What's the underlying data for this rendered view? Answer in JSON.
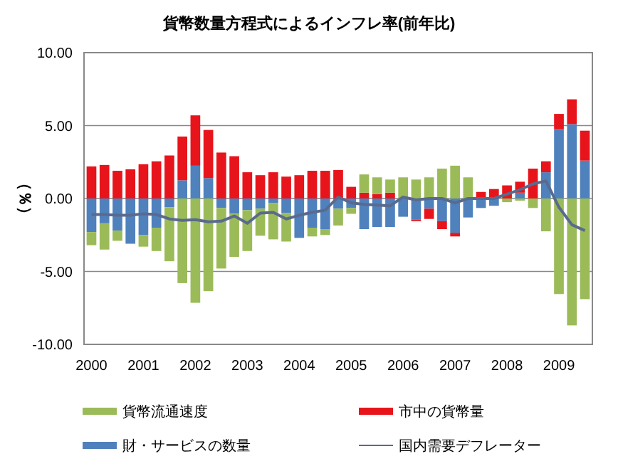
{
  "chart_data": {
    "type": "bar",
    "stacked": true,
    "title": "貨幣数量方程式によるインフレ率(前年比)",
    "ylabel": "（％）",
    "categories": [
      "2000",
      null,
      null,
      null,
      "2001",
      null,
      null,
      null,
      "2002",
      null,
      null,
      null,
      "2003",
      null,
      null,
      null,
      "2004",
      null,
      null,
      null,
      "2005",
      null,
      null,
      null,
      "2006",
      null,
      null,
      null,
      "2007",
      null,
      null,
      null,
      "2008",
      null,
      null,
      null,
      "2009",
      null,
      null
    ],
    "ylim": [
      -10,
      10
    ],
    "yticks": [
      {
        "value": -10,
        "label": "-10.00"
      },
      {
        "value": -5,
        "label": "-5.00"
      },
      {
        "value": 0,
        "label": "0.00"
      },
      {
        "value": 5,
        "label": "5.00"
      },
      {
        "value": 10,
        "label": "10.00"
      }
    ],
    "grid": "y",
    "legend": "bottom",
    "series": [
      {
        "name": "財・サービスの数量",
        "color": "#4f81bd",
        "values": [
          -2.3,
          -1.7,
          -2.2,
          -3.1,
          -2.5,
          -2.0,
          -0.6,
          1.25,
          2.25,
          1.4,
          -0.65,
          -1.05,
          -0.8,
          -0.7,
          -0.3,
          -1.0,
          -2.7,
          -2.0,
          -2.1,
          -0.7,
          -0.65,
          -2.1,
          -1.95,
          -1.95,
          -1.25,
          -1.45,
          -0.7,
          -1.55,
          -2.35,
          -1.3,
          -0.65,
          -0.5,
          0,
          0.4,
          0,
          1.8,
          4.75,
          5.1,
          2.6
        ]
      },
      {
        "name": "市中の貨幣量",
        "color": "#e8141b",
        "values": [
          2.2,
          2.3,
          1.9,
          2.0,
          2.35,
          2.55,
          2.95,
          3.0,
          3.45,
          3.3,
          3.15,
          2.9,
          1.8,
          1.6,
          1.8,
          1.5,
          1.6,
          1.9,
          1.9,
          1.95,
          0.8,
          0.4,
          0.3,
          0.4,
          0,
          -0.1,
          -0.7,
          -0.55,
          -0.25,
          0,
          0.45,
          0.65,
          0.9,
          0.75,
          2.05,
          0.75,
          1.05,
          1.7,
          2.05
        ]
      },
      {
        "name": "貨幣流通速度",
        "color": "#9bbb59",
        "values": [
          -0.9,
          -1.8,
          -0.7,
          0,
          -0.8,
          -1.6,
          -3.7,
          -5.8,
          -7.15,
          -6.35,
          -4.15,
          -2.95,
          -2.8,
          -1.85,
          -2.5,
          -1.95,
          0,
          -0.6,
          -0.4,
          -1.15,
          -0.4,
          1.25,
          1.15,
          0.9,
          1.45,
          1.3,
          1.45,
          2.05,
          2.25,
          1.45,
          0,
          0,
          -0.25,
          -0.15,
          -0.65,
          -2.25,
          -6.55,
          -8.7,
          -6.9
        ]
      },
      {
        "name": "国内需要デフレーター",
        "type": "line",
        "color": "#5a6a8e",
        "marker": "none",
        "values": [
          -1.1,
          -1.1,
          -1.15,
          -1.15,
          -1.05,
          -1.1,
          -1.4,
          -1.5,
          -1.45,
          -1.6,
          -1.55,
          -1.2,
          -1.7,
          -1.0,
          -0.95,
          -1.4,
          -1.15,
          -0.95,
          -0.8,
          0.1,
          -0.3,
          -0.4,
          -0.45,
          -0.5,
          0.1,
          -0.1,
          0,
          0,
          -0.3,
          0,
          0,
          0,
          0.3,
          0.6,
          1.0,
          1.2,
          -0.6,
          -1.8,
          -2.2
        ]
      }
    ]
  }
}
